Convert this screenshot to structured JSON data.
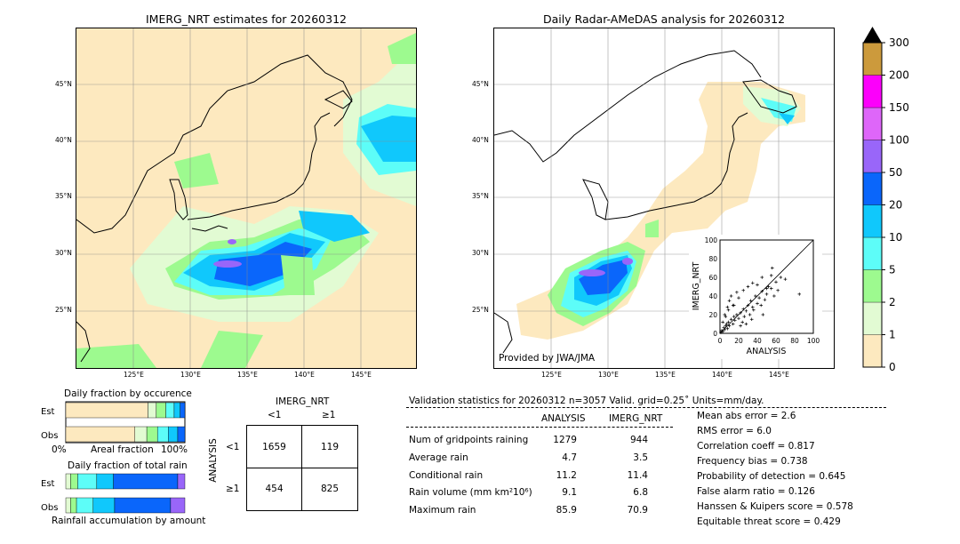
{
  "left_map": {
    "title": "IMERG_NRT estimates for 20260312",
    "lat_ticks": [
      "45°N",
      "40°N",
      "35°N",
      "30°N",
      "25°N"
    ],
    "lon_ticks": [
      "125°E",
      "130°E",
      "135°E",
      "140°E",
      "145°E"
    ]
  },
  "right_map": {
    "title": "Daily Radar-AMeDAS analysis for 20260312",
    "lat_ticks": [
      "45°N",
      "40°N",
      "35°N",
      "30°N",
      "25°N"
    ],
    "lon_ticks": [
      "125°E",
      "130°E",
      "135°E",
      "140°E",
      "145°E"
    ],
    "credit": "Provided by JWA/JMA"
  },
  "colorbar": {
    "levels": [
      "0",
      "1",
      "2",
      "5",
      "10",
      "20",
      "50",
      "100",
      "150",
      "200",
      "300"
    ],
    "colors": [
      "#fde9bf",
      "#e2fbd3",
      "#9dfa8f",
      "#5dfdf8",
      "#10c8fc",
      "#0a66fb",
      "#9966f9",
      "#de66f9",
      "#fc00fb",
      "#cc9a3c"
    ]
  },
  "scatter": {
    "xlabel": "ANALYSIS",
    "ylabel": "IMERG_NRT",
    "ticks": [
      "0",
      "20",
      "40",
      "60",
      "80",
      "100"
    ]
  },
  "fraction_occurrence": {
    "title": "Daily fraction by occurence",
    "rows": [
      "Est",
      "Obs"
    ],
    "axis_left": "0%",
    "axis_mid": "Areal fraction",
    "axis_right": "100%"
  },
  "fraction_total": {
    "title": "Daily fraction of total rain",
    "rows": [
      "Est",
      "Obs"
    ],
    "footer": "Rainfall accumulation by amount"
  },
  "contingency": {
    "title": "IMERG_NRT",
    "col_labels": [
      "<1",
      "≥1"
    ],
    "row_title": "ANALYSIS",
    "row_labels": [
      "<1",
      "≥1"
    ],
    "cells": [
      [
        "1659",
        "119"
      ],
      [
        "454",
        "825"
      ]
    ]
  },
  "validation": {
    "header": "Validation statistics for 20260312  n=3057 Valid. grid=0.25˚ Units=mm/day.",
    "col_analysis": "ANALYSIS",
    "col_imerg": "IMERG_NRT",
    "rows": [
      {
        "label": "Num of gridpoints raining",
        "analysis": "1279",
        "imerg": "944"
      },
      {
        "label": "Average rain",
        "analysis": "4.7",
        "imerg": "3.5"
      },
      {
        "label": "Conditional rain",
        "analysis": "11.2",
        "imerg": "11.4"
      },
      {
        "label": "Rain volume (mm km²10⁶)",
        "analysis": "9.1",
        "imerg": "6.8"
      },
      {
        "label": "Maximum rain",
        "analysis": "85.9",
        "imerg": "70.9"
      }
    ],
    "scores": [
      "Mean abs error =    2.6",
      "RMS error =    6.0",
      "Correlation coeff =  0.817",
      "Frequency bias =  0.738",
      "Probability of detection =  0.645",
      "False alarm ratio =  0.126",
      "Hanssen & Kuipers score =  0.578",
      "Equitable threat score =  0.429"
    ]
  },
  "chart_data": [
    {
      "type": "scatter",
      "xlabel": "ANALYSIS",
      "ylabel": "IMERG_NRT",
      "xlim": [
        0,
        100
      ],
      "ylim": [
        0,
        100
      ],
      "x": [
        1,
        2,
        3,
        4,
        5,
        6,
        7,
        8,
        9,
        10,
        12,
        14,
        15,
        16,
        18,
        20,
        22,
        24,
        25,
        26,
        28,
        30,
        32,
        33,
        35,
        36,
        38,
        40,
        42,
        44,
        45,
        48,
        50,
        52,
        55,
        58,
        60,
        62,
        65,
        70,
        5,
        8,
        10,
        12,
        15,
        18,
        20,
        25,
        30,
        35,
        40,
        45,
        50,
        55,
        3,
        6,
        9,
        14,
        22,
        28,
        34,
        46,
        56,
        85
      ],
      "y": [
        1,
        3,
        2,
        6,
        4,
        8,
        10,
        5,
        12,
        8,
        15,
        10,
        18,
        14,
        20,
        16,
        22,
        12,
        26,
        18,
        24,
        30,
        20,
        35,
        28,
        25,
        40,
        32,
        38,
        30,
        45,
        36,
        42,
        50,
        48,
        40,
        55,
        46,
        60,
        58,
        20,
        28,
        35,
        40,
        30,
        44,
        38,
        46,
        50,
        54,
        52,
        60,
        48,
        62,
        12,
        18,
        25,
        30,
        8,
        10,
        15,
        20,
        70,
        42
      ]
    },
    {
      "type": "table",
      "title": "IMERG_NRT",
      "columns": [
        "<1",
        "≥1"
      ],
      "rows": [
        "<1",
        "≥1"
      ],
      "values": [
        [
          1659,
          119
        ],
        [
          454,
          825
        ]
      ]
    },
    {
      "type": "bar",
      "title": "Daily fraction by occurence",
      "categories": [
        "Est",
        "Obs"
      ],
      "series": [
        {
          "values": [
            0.69,
            0.58
          ]
        },
        {
          "values": [
            0.07,
            0.1
          ]
        },
        {
          "values": [
            0.08,
            0.09
          ]
        },
        {
          "values": [
            0.07,
            0.09
          ]
        },
        {
          "values": [
            0.05,
            0.08
          ]
        },
        {
          "values": [
            0.04,
            0.06
          ]
        }
      ]
    },
    {
      "type": "bar",
      "title": "Daily fraction of total rain",
      "categories": [
        "Est",
        "Obs"
      ],
      "series": [
        {
          "values": [
            0.04,
            0.04
          ]
        },
        {
          "values": [
            0.06,
            0.05
          ]
        },
        {
          "values": [
            0.16,
            0.14
          ]
        },
        {
          "values": [
            0.14,
            0.18
          ]
        },
        {
          "values": [
            0.54,
            0.47
          ]
        },
        {
          "values": [
            0.06,
            0.12
          ]
        }
      ]
    }
  ]
}
